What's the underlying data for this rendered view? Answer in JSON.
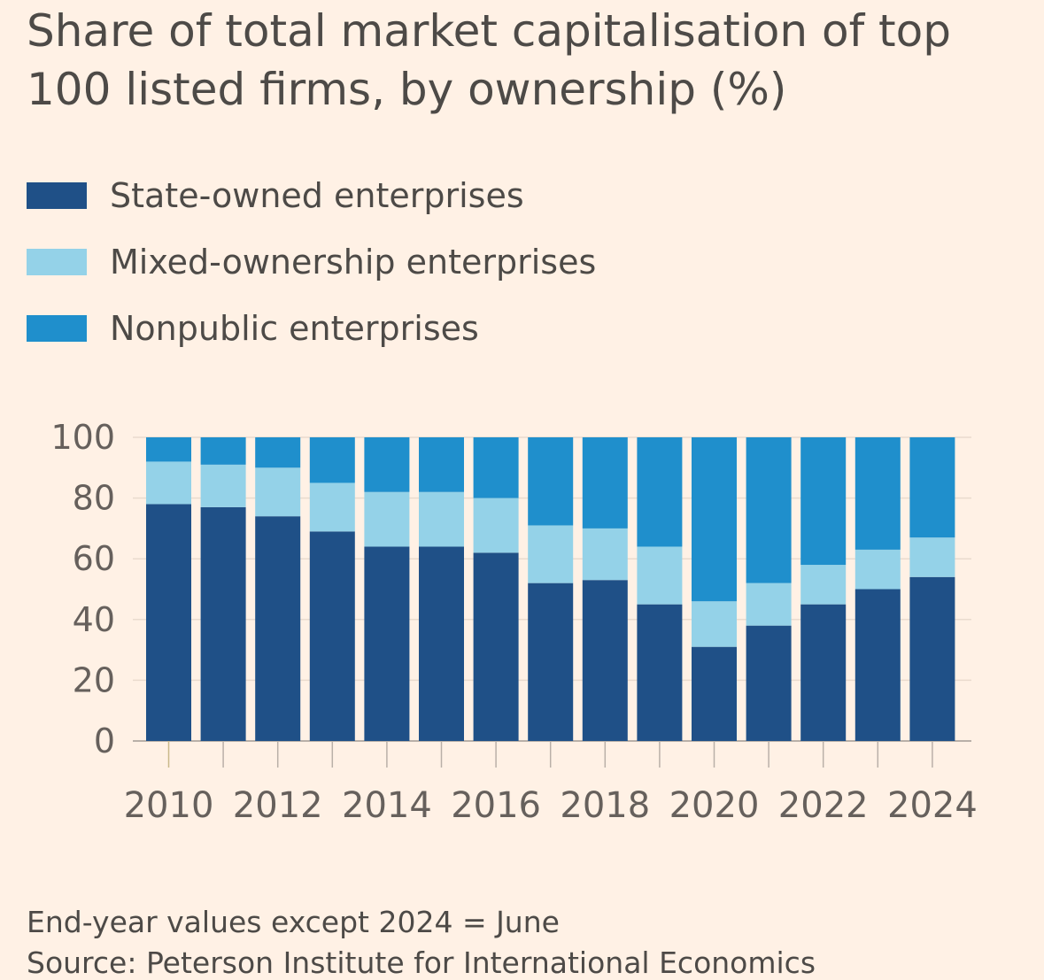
{
  "title": "Share of total market capitalisation of top 100 listed firms, by ownership (%)",
  "legend": [
    {
      "label": "State-owned enterprises",
      "color": "#1f5087"
    },
    {
      "label": "Mixed-ownership enterprises",
      "color": "#94d2e8"
    },
    {
      "label": "Nonpublic enterprises",
      "color": "#1f8fcc"
    }
  ],
  "footnote": "End-year values except 2024 = June",
  "source": "Source: Peterson Institute for International Economics",
  "chart_data": {
    "type": "bar",
    "stacked": true,
    "title": "Share of total market capitalisation of top 100 listed firms, by ownership (%)",
    "categories": [
      "2010",
      "2011",
      "2012",
      "2013",
      "2014",
      "2015",
      "2016",
      "2017",
      "2018",
      "2019",
      "2020",
      "2021",
      "2022",
      "2023",
      "2024"
    ],
    "x_tick_labels": [
      "2010",
      "2012",
      "2014",
      "2016",
      "2018",
      "2020",
      "2022",
      "2024"
    ],
    "y_ticks": [
      "0",
      "20",
      "40",
      "60",
      "80",
      "100"
    ],
    "ylim": [
      0,
      100
    ],
    "series": [
      {
        "name": "State-owned enterprises",
        "values": [
          78,
          77,
          74,
          69,
          64,
          64,
          62,
          52,
          53,
          45,
          31,
          38,
          45,
          50,
          54
        ]
      },
      {
        "name": "Mixed-ownership enterprises",
        "values": [
          14,
          14,
          16,
          16,
          18,
          18,
          18,
          19,
          17,
          19,
          15,
          14,
          13,
          13,
          13
        ]
      },
      {
        "name": "Nonpublic enterprises",
        "values": [
          8,
          9,
          10,
          15,
          18,
          18,
          20,
          29,
          30,
          36,
          54,
          48,
          42,
          37,
          33
        ]
      }
    ]
  }
}
